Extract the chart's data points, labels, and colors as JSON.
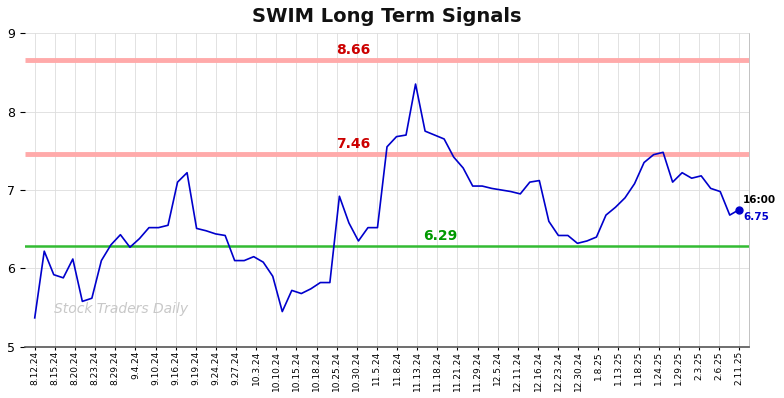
{
  "title": "SWIM Long Term Signals",
  "ylim": [
    5,
    9
  ],
  "yticks": [
    5,
    6,
    7,
    8,
    9
  ],
  "hline_green": 6.29,
  "hline_red1": 7.46,
  "hline_red2": 8.66,
  "hline_green_color": "#33bb33",
  "hline_red_color": "#ffaaaa",
  "line_color": "#0000cc",
  "last_value": 6.75,
  "watermark": "Stock Traders Daily",
  "background_color": "#ffffff",
  "grid_color": "#dddddd",
  "label_red_color": "#cc0000",
  "label_green_color": "#009900",
  "xlabels": [
    "8.12.24",
    "8.15.24",
    "8.20.24",
    "8.23.24",
    "8.29.24",
    "9.4.24",
    "9.10.24",
    "9.16.24",
    "9.19.24",
    "9.24.24",
    "9.27.24",
    "10.3.24",
    "10.10.24",
    "10.15.24",
    "10.18.24",
    "10.25.24",
    "10.30.24",
    "11.5.24",
    "11.8.24",
    "11.13.24",
    "11.18.24",
    "11.21.24",
    "11.29.24",
    "12.5.24",
    "12.11.24",
    "12.16.24",
    "12.23.24",
    "12.30.24",
    "1.8.25",
    "1.13.25",
    "1.18.25",
    "1.24.25",
    "1.29.25",
    "2.3.25",
    "2.6.25",
    "2.11.25"
  ],
  "y_values": [
    5.37,
    6.22,
    5.92,
    5.88,
    6.12,
    5.58,
    5.62,
    6.1,
    6.3,
    6.43,
    6.27,
    6.38,
    6.52,
    6.52,
    6.55,
    7.1,
    7.22,
    6.51,
    6.48,
    6.44,
    6.42,
    6.1,
    6.1,
    6.15,
    6.08,
    5.9,
    5.45,
    5.72,
    5.68,
    5.74,
    5.82,
    5.82,
    6.92,
    6.58,
    6.35,
    6.52,
    6.52,
    7.55,
    7.68,
    7.7,
    8.35,
    7.75,
    7.7,
    7.65,
    7.42,
    7.28,
    7.05,
    7.05,
    7.02,
    7.0,
    6.98,
    6.95,
    7.1,
    7.12,
    6.6,
    6.42,
    6.42,
    6.32,
    6.35,
    6.4,
    6.68,
    6.78,
    6.9,
    7.08,
    7.35,
    7.45,
    7.48,
    7.1,
    7.22,
    7.15,
    7.18,
    7.02,
    6.98,
    6.68,
    6.75
  ]
}
